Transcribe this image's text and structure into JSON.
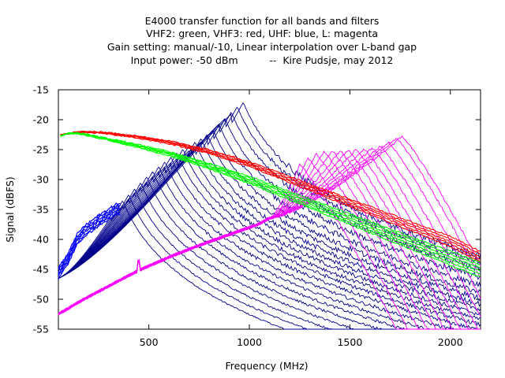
{
  "chart_data": {
    "type": "line",
    "title_lines": [
      "E4000 transfer function for all bands and filters",
      "VHF2: green, VHF3: red, UHF: blue, L: magenta",
      "Gain setting: manual/-10, Linear interpolation over L-band gap",
      "Input power: -50 dBm          --  Kire Pudsje, may 2012"
    ],
    "xlabel": "Frequency (MHz)",
    "ylabel": "Signal (dBFS)",
    "xlim": [
      50,
      2150
    ],
    "ylim": [
      -55,
      -15
    ],
    "xticks": [
      500,
      1000,
      1500,
      2000
    ],
    "yticks": [
      -15,
      -20,
      -25,
      -30,
      -35,
      -40,
      -45,
      -50,
      -55
    ],
    "grid": false,
    "legend": "none",
    "series": [
      {
        "color": "#00008b",
        "peak_freqs": [
          370,
          400,
          430,
          460,
          490,
          520,
          550,
          580,
          610,
          640,
          670,
          700,
          730,
          760,
          790,
          820,
          850,
          880,
          910,
          940,
          970
        ],
        "peak_levels": [
          -33.5,
          -32.5,
          -31.5,
          -30.5,
          -29.5,
          -28.6,
          -27.8,
          -27,
          -26.2,
          -25.5,
          -24.9,
          -24.3,
          -23.7,
          -23.1,
          -22.4,
          -21.7,
          -20.8,
          -19.8,
          -18.7,
          -17.8,
          -17.1
        ]
      },
      {
        "color": "#0000ff",
        "x": [
          50,
          100,
          140,
          180,
          220,
          260,
          300,
          340
        ],
        "y": [
          -46.5,
          -44,
          -41,
          -39.5,
          -38.5,
          -37.5,
          -36.7,
          -35.8
        ]
      },
      {
        "color": "#ff00ff",
        "x": [
          50,
          150,
          250,
          350,
          450,
          550,
          650,
          750,
          850,
          950,
          1050,
          1150,
          1250,
          1350
        ],
        "y": [
          -52.5,
          -50.5,
          -48.7,
          -46.9,
          -45.2,
          -43.7,
          -42.3,
          -41,
          -39.8,
          -38.6,
          -37.4,
          -35.5,
          -31.5,
          -28.5
        ],
        "peak_freqs": [
          1250,
          1290,
          1330,
          1370,
          1410,
          1450,
          1490,
          1530,
          1570,
          1610,
          1650,
          1690,
          1730,
          1760
        ],
        "peak_levels": [
          -27.5,
          -26.5,
          -25.7,
          -25.4,
          -25.2,
          -25.2,
          -25.1,
          -25,
          -24.9,
          -24.7,
          -24.4,
          -23.8,
          -23.1,
          -22.8
        ]
      },
      {
        "color": "#ff0000",
        "x": [
          60,
          150,
          250,
          400,
          600,
          800,
          1000,
          1200,
          1400,
          1600,
          1800,
          2000,
          2150
        ],
        "y": [
          -22.5,
          -22,
          -22,
          -22.5,
          -23.5,
          -25,
          -27,
          -29.5,
          -32,
          -34.5,
          -37,
          -39.5,
          -42
        ]
      },
      {
        "color": "#00ff00",
        "x": [
          60,
          100,
          150,
          250,
          400,
          600,
          800,
          1000,
          1200,
          1400,
          1600,
          1800,
          2000,
          2150
        ],
        "y": [
          -22.7,
          -22.2,
          -22.2,
          -22.8,
          -23.8,
          -25.3,
          -27.3,
          -29.5,
          -32,
          -34.5,
          -37,
          -39.5,
          -42,
          -43.8
        ]
      }
    ]
  }
}
